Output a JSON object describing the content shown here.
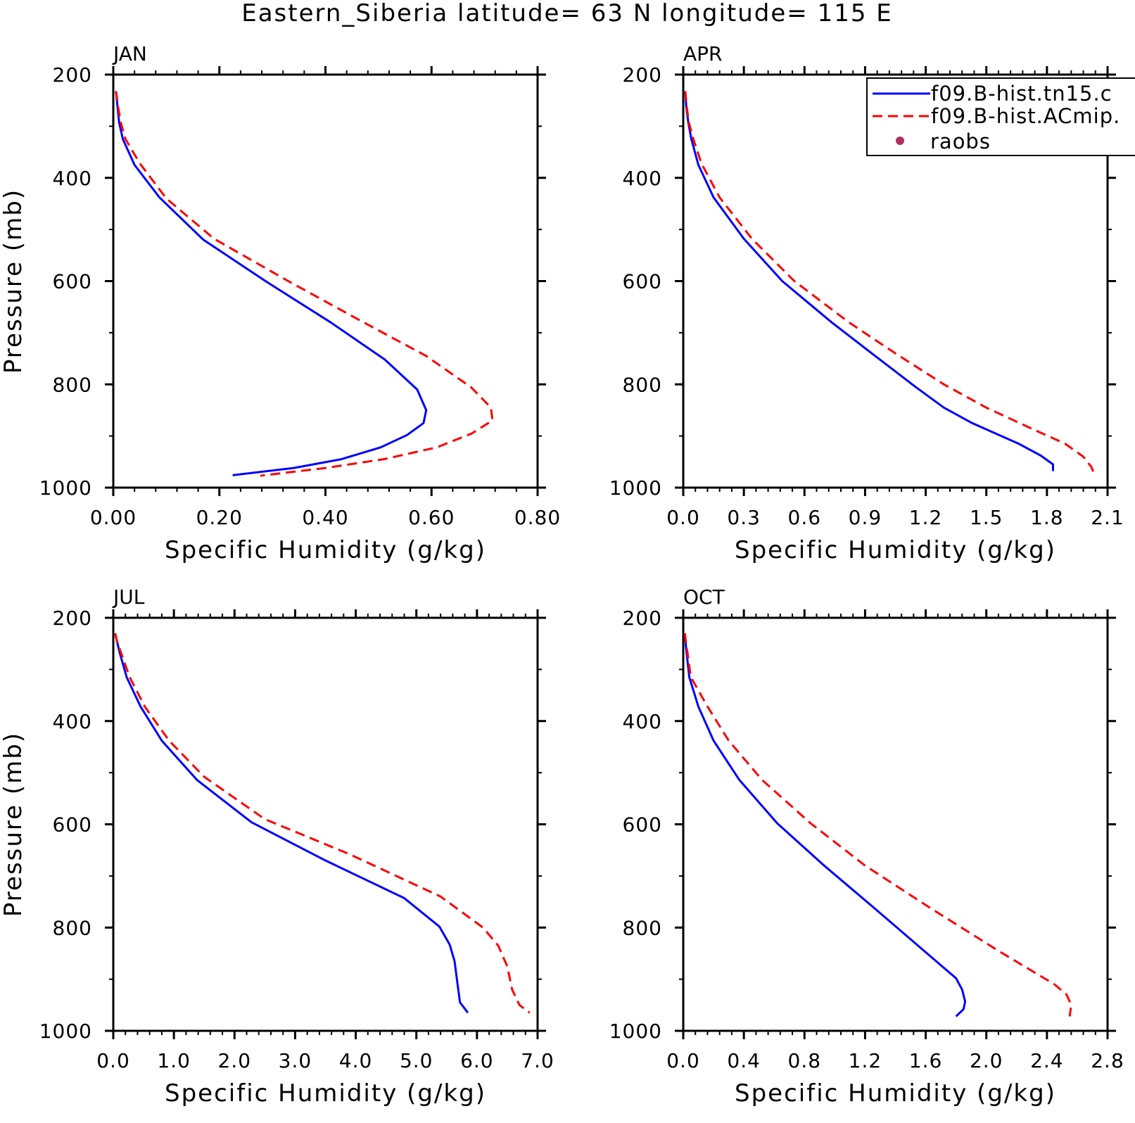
{
  "title": "Eastern_Siberia  latitude= 63 N longitude= 115 E",
  "legend": {
    "entries": [
      {
        "label": "f09.B-hist.tn15.c",
        "color": "#0000ff",
        "style": "solid",
        "marker": "line"
      },
      {
        "label": "f09.B-hist.ACmip.",
        "color": "#ff0000",
        "style": "dashed",
        "marker": "line"
      },
      {
        "label": "raobs",
        "color": "#b03060",
        "style": "none",
        "marker": "dot"
      }
    ]
  },
  "chart_data": [
    {
      "type": "line",
      "panel_label": "JAN",
      "xlabel": "Specific Humidity (g/kg)",
      "ylabel": "Pressure (mb)",
      "xlim": [
        0,
        0.8
      ],
      "ylim": [
        200,
        1000
      ],
      "y_inverted": true,
      "xticks": [
        0,
        0.2,
        0.4,
        0.6,
        0.8
      ],
      "xtick_labels": [
        "0.00",
        "0.20",
        "0.40",
        "0.60",
        "0.80"
      ],
      "yticks": [
        200,
        400,
        600,
        800,
        1000
      ],
      "ytick_labels": [
        "200",
        "400",
        "600",
        "800",
        "1000"
      ],
      "series": [
        {
          "name": "f09.B-hist.tn15.c",
          "color": "#0000ff",
          "dashed": false,
          "points": [
            [
              0.005,
              232
            ],
            [
              0.008,
              262
            ],
            [
              0.011,
              293
            ],
            [
              0.018,
              325
            ],
            [
              0.04,
              375
            ],
            [
              0.087,
              438
            ],
            [
              0.17,
              520
            ],
            [
              0.29,
              602
            ],
            [
              0.41,
              680
            ],
            [
              0.512,
              752
            ],
            [
              0.573,
              810
            ],
            [
              0.59,
              850
            ],
            [
              0.585,
              875
            ],
            [
              0.554,
              898
            ],
            [
              0.504,
              922
            ],
            [
              0.43,
              945
            ],
            [
              0.34,
              962
            ],
            [
              0.225,
              976
            ]
          ]
        },
        {
          "name": "f09.B-hist.ACmip.",
          "color": "#ff0000",
          "dashed": true,
          "points": [
            [
              0.005,
              232
            ],
            [
              0.009,
              262
            ],
            [
              0.014,
              293
            ],
            [
              0.023,
              325
            ],
            [
              0.05,
              372
            ],
            [
              0.1,
              440
            ],
            [
              0.19,
              518
            ],
            [
              0.33,
              600
            ],
            [
              0.463,
              675
            ],
            [
              0.59,
              745
            ],
            [
              0.675,
              806
            ],
            [
              0.712,
              845
            ],
            [
              0.715,
              870
            ],
            [
              0.676,
              895
            ],
            [
              0.61,
              922
            ],
            [
              0.51,
              945
            ],
            [
              0.4,
              962
            ],
            [
              0.277,
              977
            ]
          ]
        }
      ]
    },
    {
      "type": "line",
      "panel_label": "APR",
      "xlabel": "Specific Humidity (g/kg)",
      "ylabel": "",
      "xlim": [
        0,
        2.1
      ],
      "ylim": [
        200,
        1000
      ],
      "y_inverted": true,
      "xticks": [
        0,
        0.3,
        0.6,
        0.9,
        1.2,
        1.5,
        1.8,
        2.1
      ],
      "xtick_labels": [
        "0.0",
        "0.3",
        "0.6",
        "0.9",
        "1.2",
        "1.5",
        "1.8",
        "2.1"
      ],
      "yticks": [
        200,
        400,
        600,
        800,
        1000
      ],
      "ytick_labels": [
        "200",
        "400",
        "600",
        "800",
        "1000"
      ],
      "series": [
        {
          "name": "f09.B-hist.tn15.c",
          "color": "#0000ff",
          "dashed": false,
          "points": [
            [
              0.01,
              232
            ],
            [
              0.015,
              262
            ],
            [
              0.025,
              293
            ],
            [
              0.04,
              325
            ],
            [
              0.075,
              375
            ],
            [
              0.15,
              438
            ],
            [
              0.3,
              518
            ],
            [
              0.49,
              600
            ],
            [
              0.735,
              680
            ],
            [
              0.95,
              745
            ],
            [
              1.15,
              805
            ],
            [
              1.29,
              845
            ],
            [
              1.43,
              875
            ],
            [
              1.66,
              915
            ],
            [
              1.77,
              938
            ],
            [
              1.83,
              955
            ],
            [
              1.83,
              968
            ]
          ]
        },
        {
          "name": "f09.B-hist.ACmip.",
          "color": "#ff0000",
          "dashed": true,
          "points": [
            [
              0.01,
              232
            ],
            [
              0.017,
              262
            ],
            [
              0.028,
              293
            ],
            [
              0.05,
              325
            ],
            [
              0.09,
              372
            ],
            [
              0.18,
              438
            ],
            [
              0.34,
              518
            ],
            [
              0.55,
              600
            ],
            [
              0.82,
              680
            ],
            [
              1.05,
              740
            ],
            [
              1.29,
              800
            ],
            [
              1.5,
              845
            ],
            [
              1.72,
              885
            ],
            [
              1.89,
              915
            ],
            [
              1.98,
              940
            ],
            [
              2.02,
              960
            ],
            [
              2.03,
              970
            ]
          ]
        }
      ]
    },
    {
      "type": "line",
      "panel_label": "JUL",
      "xlabel": "Specific Humidity (g/kg)",
      "ylabel": "Pressure (mb)",
      "xlim": [
        0,
        7.0
      ],
      "ylim": [
        200,
        1000
      ],
      "y_inverted": true,
      "xticks": [
        0,
        1,
        2,
        3,
        4,
        5,
        6,
        7
      ],
      "xtick_labels": [
        "0.0",
        "1.0",
        "2.0",
        "3.0",
        "4.0",
        "5.0",
        "6.0",
        "7.0"
      ],
      "yticks": [
        200,
        400,
        600,
        800,
        1000
      ],
      "ytick_labels": [
        "200",
        "400",
        "600",
        "800",
        "1000"
      ],
      "series": [
        {
          "name": "f09.B-hist.tn15.c",
          "color": "#0000ff",
          "dashed": false,
          "points": [
            [
              0.03,
              230
            ],
            [
              0.06,
              245
            ],
            [
              0.1,
              265
            ],
            [
              0.22,
              315
            ],
            [
              0.45,
              372
            ],
            [
              0.8,
              438
            ],
            [
              1.38,
              514
            ],
            [
              2.28,
              596
            ],
            [
              3.5,
              670
            ],
            [
              4.8,
              743
            ],
            [
              5.38,
              798
            ],
            [
              5.55,
              833
            ],
            [
              5.63,
              865
            ],
            [
              5.68,
              910
            ],
            [
              5.72,
              945
            ],
            [
              5.85,
              965
            ]
          ]
        },
        {
          "name": "f09.B-hist.ACmip.",
          "color": "#ff0000",
          "dashed": true,
          "points": [
            [
              0.03,
              230
            ],
            [
              0.06,
              245
            ],
            [
              0.12,
              265
            ],
            [
              0.27,
              315
            ],
            [
              0.52,
              372
            ],
            [
              0.92,
              438
            ],
            [
              1.5,
              508
            ],
            [
              2.5,
              590
            ],
            [
              3.9,
              658
            ],
            [
              5.4,
              740
            ],
            [
              6.1,
              800
            ],
            [
              6.35,
              835
            ],
            [
              6.5,
              875
            ],
            [
              6.58,
              920
            ],
            [
              6.7,
              950
            ],
            [
              6.87,
              965
            ]
          ]
        }
      ]
    },
    {
      "type": "line",
      "panel_label": "OCT",
      "xlabel": "Specific Humidity (g/kg)",
      "ylabel": "",
      "xlim": [
        0,
        2.8
      ],
      "ylim": [
        200,
        1000
      ],
      "y_inverted": true,
      "xticks": [
        0,
        0.4,
        0.8,
        1.2,
        1.6,
        2.0,
        2.4,
        2.8
      ],
      "xtick_labels": [
        "0.0",
        "0.4",
        "0.8",
        "1.2",
        "1.6",
        "2.0",
        "2.4",
        "2.8"
      ],
      "yticks": [
        200,
        400,
        600,
        800,
        1000
      ],
      "ytick_labels": [
        "200",
        "400",
        "600",
        "800",
        "1000"
      ],
      "series": [
        {
          "name": "f09.B-hist.tn15.c",
          "color": "#0000ff",
          "dashed": false,
          "points": [
            [
              0.01,
              230
            ],
            [
              0.02,
              262
            ],
            [
              0.04,
              315
            ],
            [
              0.1,
              372
            ],
            [
              0.2,
              438
            ],
            [
              0.37,
              514
            ],
            [
              0.62,
              598
            ],
            [
              0.93,
              680
            ],
            [
              1.26,
              762
            ],
            [
              1.68,
              868
            ],
            [
              1.8,
              898
            ],
            [
              1.84,
              920
            ],
            [
              1.86,
              943
            ],
            [
              1.85,
              958
            ],
            [
              1.8,
              972
            ]
          ]
        },
        {
          "name": "f09.B-hist.ACmip.",
          "color": "#ff0000",
          "dashed": true,
          "points": [
            [
              0.01,
              230
            ],
            [
              0.025,
              262
            ],
            [
              0.05,
              315
            ],
            [
              0.16,
              372
            ],
            [
              0.3,
              438
            ],
            [
              0.52,
              514
            ],
            [
              0.84,
              598
            ],
            [
              1.2,
              680
            ],
            [
              1.63,
              762
            ],
            [
              2.08,
              845
            ],
            [
              2.45,
              910
            ],
            [
              2.53,
              930
            ],
            [
              2.56,
              950
            ],
            [
              2.55,
              972
            ]
          ]
        }
      ]
    }
  ]
}
